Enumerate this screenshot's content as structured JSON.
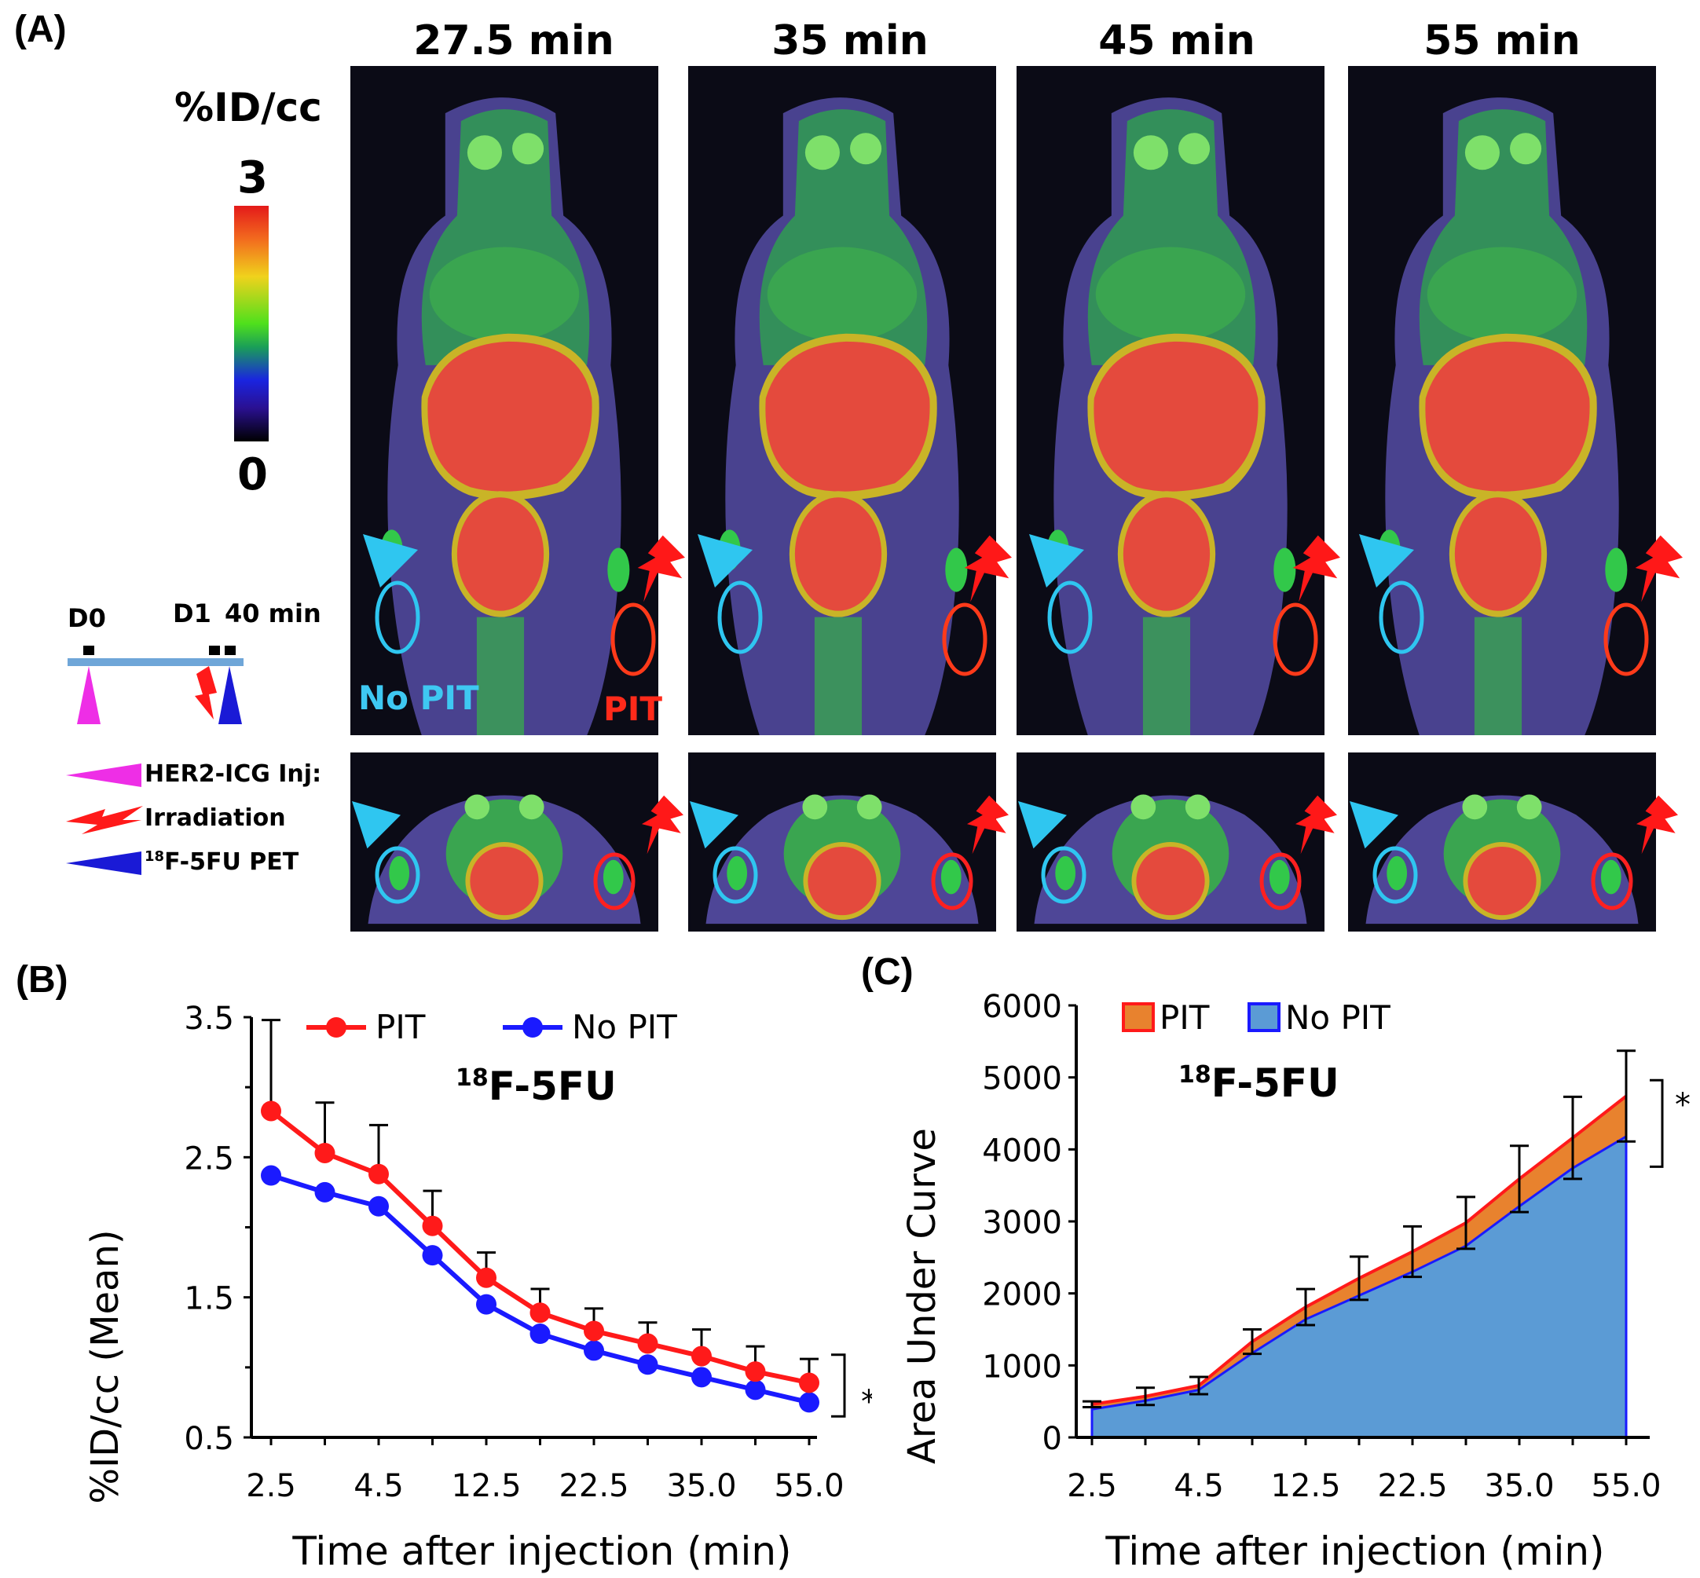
{
  "panels": {
    "a": "(A)",
    "b": "(B)",
    "c": "(C)"
  },
  "pet_images": {
    "time_labels": [
      "27.5 min",
      "35 min",
      "45 min",
      "55 min"
    ],
    "colorbar": {
      "title": "%ID/cc",
      "max_label": "3",
      "min_label": "0"
    },
    "labels": {
      "no_pit": "No PIT",
      "pit": "PIT"
    },
    "colors": {
      "no_pit_roi": "#2fc6f0",
      "pit_roi": "#ff3a1a",
      "liver": "#e8483c"
    }
  },
  "timeline": {
    "d0": "D0",
    "d1": "D1",
    "d40": "40 min",
    "legend": {
      "inj": "HER2-ICG Inj:",
      "irr": "Irradiation",
      "pet_sup": "18",
      "pet": "F-5FU PET"
    },
    "colors": {
      "inj": "#ee2ee6",
      "irr": "#ff1a1a",
      "pet": "#1a1ad6",
      "bar": "#6fa6d8"
    }
  },
  "chart_data": [
    {
      "id": "B",
      "type": "line",
      "title_sup": "18",
      "title": "F-5FU",
      "xlabel": "Time after injection (min)",
      "ylabel": "%ID/cc (Mean)",
      "ylim": [
        0.5,
        3.5
      ],
      "yticks": [
        "3.5",
        "2.5",
        "1.5",
        "0.5"
      ],
      "xticks": [
        "2.5",
        "4.5",
        "12.5",
        "22.5",
        "35.0",
        "55.0"
      ],
      "legend": [
        "PIT",
        "No PIT"
      ],
      "significance": "*",
      "series": [
        {
          "name": "PIT",
          "color": "#ff1a1a",
          "values": [
            2.83,
            2.53,
            2.38,
            2.01,
            1.64,
            1.39,
            1.26,
            1.17,
            1.08,
            0.97,
            0.89
          ],
          "errors": [
            0.65,
            0.36,
            0.35,
            0.25,
            0.18,
            0.17,
            0.16,
            0.15,
            0.19,
            0.18,
            0.17
          ]
        },
        {
          "name": "No PIT",
          "color": "#1a1aff",
          "values": [
            2.37,
            2.25,
            2.15,
            1.8,
            1.45,
            1.24,
            1.12,
            1.02,
            0.93,
            0.84,
            0.75
          ],
          "errors": []
        }
      ]
    },
    {
      "id": "C",
      "type": "area",
      "title_sup": "18",
      "title": "F-5FU",
      "xlabel": "Time after injection (min)",
      "ylabel": "Area Under Curve",
      "ylim": [
        0,
        6000
      ],
      "yticks": [
        "6000",
        "5000",
        "4000",
        "3000",
        "2000",
        "1000",
        "0"
      ],
      "xticks": [
        "2.5",
        "4.5",
        "12.5",
        "22.5",
        "35.0",
        "55.0"
      ],
      "legend": [
        "PIT",
        "No PIT"
      ],
      "significance": "*",
      "series": [
        {
          "name": "PIT",
          "color": "#e8822e",
          "edge": "#ff1a1a",
          "values": [
            460,
            570,
            720,
            1330,
            1810,
            2210,
            2580,
            2980,
            3590,
            4160,
            4740
          ],
          "errors": [
            40,
            120,
            120,
            170,
            250,
            300,
            350,
            360,
            460,
            570,
            630
          ]
        },
        {
          "name": "No PIT",
          "color": "#5b9bd5",
          "edge": "#1a1aff",
          "values": [
            390,
            510,
            660,
            1170,
            1640,
            1970,
            2300,
            2660,
            3210,
            3740,
            4180
          ],
          "errors": []
        }
      ]
    }
  ]
}
